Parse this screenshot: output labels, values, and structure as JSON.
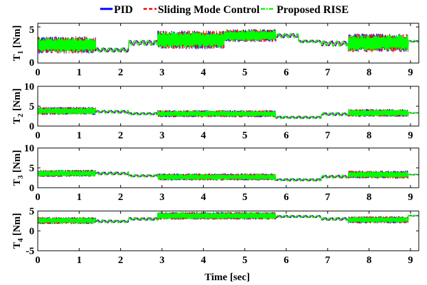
{
  "chart_data": {
    "type": "line",
    "legend": {
      "placement": "top",
      "entries": [
        {
          "name": "PID",
          "color": "#0000ff",
          "style": "solid"
        },
        {
          "name": "Sliding Mode Control",
          "color": "#ff0000",
          "style": "dashed"
        },
        {
          "name": "Proposed RISE",
          "color": "#00ff00",
          "style": "dash-dot"
        }
      ]
    },
    "xlabel": "Time [sec]",
    "x_ticks": [
      "0",
      "1",
      "2",
      "3",
      "4",
      "5",
      "6",
      "7",
      "8",
      "9"
    ],
    "xlim": [
      0,
      9.2
    ],
    "grid": false,
    "series_names": [
      "PID",
      "Sliding Mode Control",
      "Proposed RISE"
    ],
    "subplots": [
      {
        "ylabel": "T",
        "ylabel_sub": "1",
        "ylabel_unit": "[Nm]",
        "ylim": [
          0,
          5.5
        ],
        "y_ticks": [
          "0",
          "5"
        ],
        "segments": [
          {
            "t": [
              0,
              1.4
            ],
            "level": 2.5,
            "amp": 1.2
          },
          {
            "t": [
              1.4,
              2.2
            ],
            "level": 1.8,
            "amp": 0.25
          },
          {
            "t": [
              2.2,
              2.9
            ],
            "level": 2.8,
            "amp": 0.3
          },
          {
            "t": [
              2.9,
              4.5
            ],
            "level": 3.2,
            "amp": 1.3
          },
          {
            "t": [
              4.5,
              5.75
            ],
            "level": 3.8,
            "amp": 0.9
          },
          {
            "t": [
              5.75,
              6.3
            ],
            "level": 3.8,
            "amp": 0.25
          },
          {
            "t": [
              6.3,
              6.85
            ],
            "level": 3.0,
            "amp": 0.15
          },
          {
            "t": [
              6.85,
              7.5
            ],
            "level": 2.7,
            "amp": 0.3
          },
          {
            "t": [
              7.5,
              8.95
            ],
            "level": 2.8,
            "amp": 1.3
          },
          {
            "t": [
              8.95,
              9.2
            ],
            "level": 3.0,
            "amp": 0.1
          }
        ]
      },
      {
        "ylabel": "T",
        "ylabel_sub": "2",
        "ylabel_unit": "[Nm]",
        "ylim": [
          0,
          10
        ],
        "y_ticks": [
          "0",
          "5",
          "10"
        ],
        "segments": [
          {
            "t": [
              0,
              1.4
            ],
            "level": 3.8,
            "amp": 1.0
          },
          {
            "t": [
              1.4,
              2.2
            ],
            "level": 3.6,
            "amp": 0.3
          },
          {
            "t": [
              2.2,
              2.9
            ],
            "level": 3.1,
            "amp": 0.25
          },
          {
            "t": [
              2.9,
              5.75
            ],
            "level": 3.1,
            "amp": 0.9
          },
          {
            "t": [
              5.75,
              6.85
            ],
            "level": 2.2,
            "amp": 0.25
          },
          {
            "t": [
              6.85,
              7.5
            ],
            "level": 3.0,
            "amp": 0.3
          },
          {
            "t": [
              7.5,
              8.95
            ],
            "level": 3.3,
            "amp": 1.0
          },
          {
            "t": [
              8.95,
              9.2
            ],
            "level": 3.3,
            "amp": 0.1
          }
        ]
      },
      {
        "ylabel": "T",
        "ylabel_sub": "3",
        "ylabel_unit": "[Nm]",
        "ylim": [
          0,
          10
        ],
        "y_ticks": [
          "0",
          "5",
          "10"
        ],
        "segments": [
          {
            "t": [
              0,
              1.4
            ],
            "level": 3.6,
            "amp": 0.9
          },
          {
            "t": [
              1.4,
              2.2
            ],
            "level": 3.6,
            "amp": 0.3
          },
          {
            "t": [
              2.2,
              2.9
            ],
            "level": 3.0,
            "amp": 0.25
          },
          {
            "t": [
              2.9,
              5.75
            ],
            "level": 2.7,
            "amp": 0.9
          },
          {
            "t": [
              5.75,
              6.85
            ],
            "level": 2.0,
            "amp": 0.25
          },
          {
            "t": [
              6.85,
              7.5
            ],
            "level": 2.8,
            "amp": 0.3
          },
          {
            "t": [
              7.5,
              8.95
            ],
            "level": 3.3,
            "amp": 1.0
          },
          {
            "t": [
              8.95,
              9.2
            ],
            "level": 3.3,
            "amp": 0.1
          }
        ]
      },
      {
        "ylabel": "T",
        "ylabel_sub": "4",
        "ylabel_unit": "[Nm]",
        "ylim": [
          -5,
          5
        ],
        "y_ticks": [
          "-5",
          "0",
          "5"
        ],
        "segments": [
          {
            "t": [
              0,
              1.4
            ],
            "level": 2.6,
            "amp": 0.9
          },
          {
            "t": [
              1.4,
              2.2
            ],
            "level": 2.4,
            "amp": 0.3
          },
          {
            "t": [
              2.2,
              2.9
            ],
            "level": 3.0,
            "amp": 0.3
          },
          {
            "t": [
              2.9,
              5.75
            ],
            "level": 3.8,
            "amp": 1.0
          },
          {
            "t": [
              5.75,
              6.85
            ],
            "level": 3.6,
            "amp": 0.25
          },
          {
            "t": [
              6.85,
              7.5
            ],
            "level": 3.0,
            "amp": 0.3
          },
          {
            "t": [
              7.5,
              8.95
            ],
            "level": 2.8,
            "amp": 0.9
          },
          {
            "t": [
              8.95,
              9.2
            ],
            "level": 3.8,
            "amp": 0.1
          }
        ]
      }
    ]
  }
}
